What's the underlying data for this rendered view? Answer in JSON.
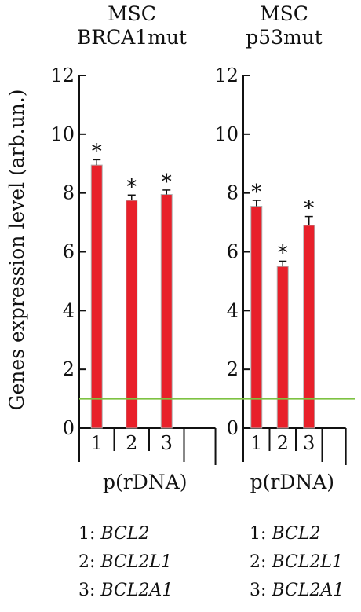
{
  "chart_data": [
    {
      "type": "bar",
      "title": "MSC\nBRCA1mut",
      "ylabel": "Genes expression level (arb.un.)",
      "xlabel": "p(rDNA)",
      "categories": [
        "1",
        "2",
        "3"
      ],
      "values": [
        8.95,
        7.75,
        7.95
      ],
      "errors": [
        0.18,
        0.18,
        0.15
      ],
      "annotations": [
        "*",
        "*",
        "*"
      ],
      "yticks": [
        "0",
        "2",
        "4",
        "6",
        "8",
        "10",
        "12"
      ],
      "ylim": [
        0,
        12
      ],
      "reference_line": 1.0,
      "bar_color": "#e8202a",
      "legend": [
        {
          "key": "1:",
          "gene": "BCL2"
        },
        {
          "key": "2:",
          "gene": "BCL2L1"
        },
        {
          "key": "3:",
          "gene": "BCL2A1"
        }
      ]
    },
    {
      "type": "bar",
      "title": "MSC\np53mut",
      "xlabel": "p(rDNA)",
      "categories": [
        "1",
        "2",
        "3"
      ],
      "values": [
        7.55,
        5.5,
        6.9
      ],
      "errors": [
        0.2,
        0.18,
        0.3
      ],
      "annotations": [
        "*",
        "*",
        "*"
      ],
      "yticks": [
        "0",
        "2",
        "4",
        "6",
        "8",
        "10",
        "12"
      ],
      "ylim": [
        0,
        12
      ],
      "reference_line": 1.0,
      "bar_color": "#e8202a",
      "legend": [
        {
          "key": "1:",
          "gene": "BCL2"
        },
        {
          "key": "2:",
          "gene": "BCL2L1"
        },
        {
          "key": "3:",
          "gene": "BCL2A1"
        }
      ]
    }
  ],
  "colors": {
    "bar": "#e8202a",
    "bar_edge": "#b0b0b0",
    "reference_line": "#7dc242",
    "axis": "#111111"
  }
}
